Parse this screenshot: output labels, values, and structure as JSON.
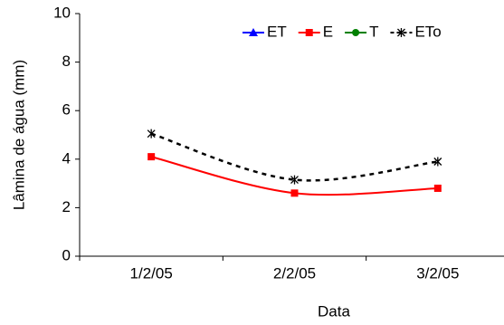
{
  "chart_data": {
    "type": "line",
    "x_label": "Data",
    "y_label": "Lâmina de água (mm)",
    "categories": [
      "1/2/05",
      "2/2/05",
      "3/2/05"
    ],
    "series": [
      {
        "name": "ET",
        "color": "#0000ff",
        "marker": "triangle",
        "dashed": false,
        "values": [
          null,
          null,
          null
        ]
      },
      {
        "name": "E",
        "color": "#ff0000",
        "marker": "square",
        "dashed": false,
        "values": [
          4.1,
          2.6,
          2.8
        ]
      },
      {
        "name": "T",
        "color": "#008000",
        "marker": "circle",
        "dashed": false,
        "values": [
          null,
          null,
          null
        ]
      },
      {
        "name": "ETo",
        "color": "#000000",
        "marker": "asterisk",
        "dashed": true,
        "values": [
          5.05,
          3.15,
          3.9
        ]
      }
    ],
    "ylim": [
      0,
      10
    ],
    "yticks": [
      0,
      2,
      4,
      6,
      8,
      10
    ],
    "legend": "top"
  }
}
